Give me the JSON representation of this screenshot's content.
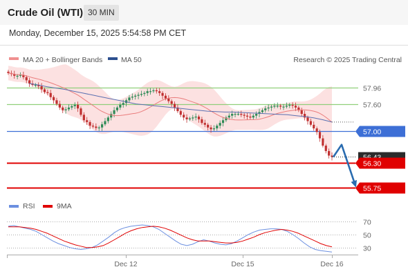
{
  "header": {
    "instrument": "Crude Oil (WTI)",
    "timeframe": "30 MIN"
  },
  "timestamp": "Monday, December 15, 2025 5:54:58 PM CET",
  "legend": {
    "ma20_bb": "MA 20 + Bollinger Bands",
    "ma50": "MA 50",
    "copyright": "Research © 2025 Trading Central",
    "rsi": "RSI",
    "ma9": "9MA"
  },
  "colors": {
    "bollinger": "#f6a5a5",
    "ma20": "#ea7c7c",
    "ma50": "#5a6fb0",
    "up": "#2e8b57",
    "down": "#c03030",
    "green_level": "#8fcf7a",
    "blue_level": "#3d6fd6",
    "red_level": "#e00000",
    "rsi": "#6b8fe0",
    "rsi_ma": "#e00000"
  },
  "chart_data": [
    {
      "type": "line",
      "title": "Crude Oil (WTI) 30 MIN",
      "x_ticks": [
        "Dec 12",
        "Dec 15",
        "Dec 16"
      ],
      "ylim": [
        55.6,
        58.4
      ],
      "levels": [
        {
          "value": "57.96",
          "style": "resistance",
          "color": "#8fcf7a"
        },
        {
          "value": "57.60",
          "style": "resistance",
          "color": "#8fcf7a"
        },
        {
          "value": "57.00",
          "style": "pivot",
          "color": "#3d6fd6"
        },
        {
          "value": "56.30",
          "style": "support",
          "color": "#e00000"
        },
        {
          "value": "55.75",
          "style": "support",
          "color": "#e00000"
        }
      ],
      "last_price": "56.43",
      "projection": {
        "from": 56.43,
        "via": 56.7,
        "to": 55.75
      },
      "series": [
        {
          "name": "Price",
          "values": [
            58.28,
            58.26,
            58.22,
            58.22,
            58.24,
            58.19,
            58.12,
            58.05,
            58.02,
            58.02,
            57.99,
            57.92,
            57.86,
            57.84,
            57.75,
            57.68,
            57.6,
            57.52,
            57.46,
            57.48,
            57.52,
            57.55,
            57.58,
            57.5,
            57.36,
            57.24,
            57.2,
            57.12,
            57.1,
            57.07,
            57.08,
            57.15,
            57.22,
            57.3,
            57.38,
            57.46,
            57.52,
            57.58,
            57.62,
            57.68,
            57.74,
            57.76,
            57.78,
            57.8,
            57.82,
            57.84,
            57.88,
            57.88,
            57.9,
            57.88,
            57.84,
            57.78,
            57.72,
            57.66,
            57.6,
            57.52,
            57.44,
            57.36,
            57.3,
            57.26,
            57.28,
            57.3,
            57.32,
            57.26,
            57.18,
            57.14,
            57.08,
            57.04,
            57.06,
            57.12,
            57.18,
            57.24,
            57.3,
            57.34,
            57.38,
            57.38,
            57.38,
            57.36,
            57.34,
            57.32,
            57.3,
            57.34,
            57.38,
            57.42,
            57.46,
            57.5,
            57.52,
            57.54,
            57.56,
            57.56,
            57.54,
            57.54,
            57.56,
            57.58,
            57.56,
            57.52,
            57.46,
            57.38,
            57.3,
            57.22,
            57.14,
            57.06,
            56.98,
            56.84,
            56.68,
            56.56,
            56.46,
            56.43
          ]
        },
        {
          "name": "MA 50",
          "values": [
            58.05,
            58.02,
            57.98,
            57.95,
            57.92,
            57.88,
            57.84,
            57.8,
            57.76,
            57.72,
            57.68,
            57.64,
            57.6,
            57.58,
            57.56,
            57.54,
            57.52,
            57.5,
            57.48,
            57.46,
            57.44,
            57.43,
            57.42,
            57.42,
            57.41,
            57.4,
            57.39,
            57.38,
            57.37,
            57.36,
            57.34,
            57.32,
            57.29,
            57.25,
            57.2
          ]
        }
      ]
    },
    {
      "type": "line",
      "title": "RSI",
      "y_ticks": [
        "70",
        "50",
        "30"
      ],
      "ylim": [
        20,
        80
      ],
      "series": [
        {
          "name": "RSI",
          "values": [
            63,
            64,
            62,
            60,
            58,
            55,
            50,
            45,
            40,
            36,
            33,
            30,
            28,
            27,
            28,
            30,
            34,
            40,
            46,
            53,
            58,
            61,
            63,
            64,
            65,
            64,
            62,
            58,
            52,
            46,
            40,
            35,
            33,
            35,
            39,
            42,
            40,
            37,
            35,
            34,
            36,
            40,
            45,
            50,
            54,
            57,
            58,
            59,
            59,
            58,
            55,
            50,
            44,
            37,
            31,
            27,
            25,
            24,
            23
          ]
        },
        {
          "name": "9MA",
          "values": [
            62,
            62,
            62,
            61,
            60,
            58,
            55,
            52,
            48,
            44,
            40,
            37,
            34,
            32,
            30,
            30,
            31,
            33,
            37,
            42,
            47,
            52,
            56,
            59,
            61,
            62,
            63,
            62,
            60,
            57,
            53,
            49,
            45,
            42,
            40,
            40,
            40,
            39,
            38,
            37,
            37,
            38,
            40,
            43,
            46,
            50,
            53,
            55,
            57,
            58,
            57,
            55,
            52,
            48,
            44,
            40,
            36,
            33,
            31
          ]
        }
      ]
    }
  ]
}
